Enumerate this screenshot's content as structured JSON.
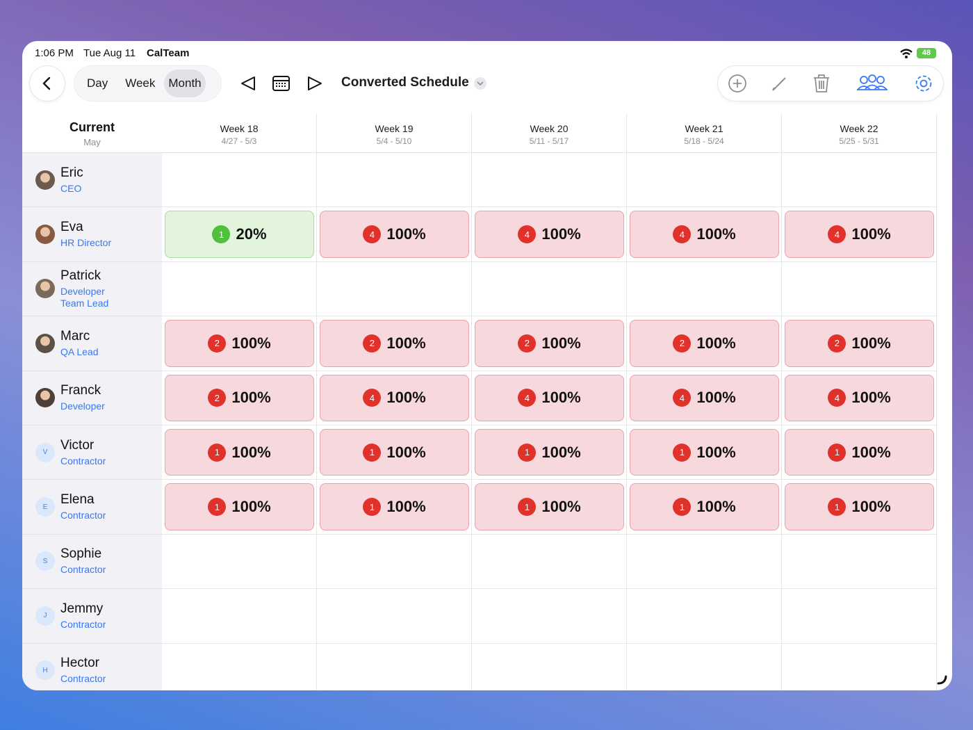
{
  "status_bar": {
    "time": "1:06 PM",
    "date": "Tue Aug 11",
    "app": "CalTeam",
    "battery": "48"
  },
  "toolbar": {
    "views": [
      "Day",
      "Week",
      "Month"
    ],
    "selected_view_index": 2,
    "title": "Converted Schedule"
  },
  "header": {
    "title": "Current",
    "subtitle": "May"
  },
  "weeks": [
    {
      "label": "Week 18",
      "range": "4/27 - 5/3"
    },
    {
      "label": "Week 19",
      "range": "5/4 - 5/10"
    },
    {
      "label": "Week 20",
      "range": "5/11 - 5/17"
    },
    {
      "label": "Week 21",
      "range": "5/18 - 5/24"
    },
    {
      "label": "Week 22",
      "range": "5/25 - 5/31"
    }
  ],
  "people": [
    {
      "name": "Eric",
      "roles": [
        "CEO"
      ],
      "cells": [
        null,
        null,
        null,
        null,
        null
      ]
    },
    {
      "name": "Eva",
      "roles": [
        "HR Director"
      ],
      "cells": [
        {
          "count": 1,
          "percent": "20%",
          "color": "green"
        },
        {
          "count": 4,
          "percent": "100%",
          "color": "red"
        },
        {
          "count": 4,
          "percent": "100%",
          "color": "red"
        },
        {
          "count": 4,
          "percent": "100%",
          "color": "red"
        },
        {
          "count": 4,
          "percent": "100%",
          "color": "red"
        }
      ]
    },
    {
      "name": "Patrick",
      "roles": [
        "Developer",
        "Team Lead"
      ],
      "cells": [
        null,
        null,
        null,
        null,
        null
      ]
    },
    {
      "name": "Marc",
      "roles": [
        "QA Lead"
      ],
      "cells": [
        {
          "count": 2,
          "percent": "100%",
          "color": "red"
        },
        {
          "count": 2,
          "percent": "100%",
          "color": "red"
        },
        {
          "count": 2,
          "percent": "100%",
          "color": "red"
        },
        {
          "count": 2,
          "percent": "100%",
          "color": "red"
        },
        {
          "count": 2,
          "percent": "100%",
          "color": "red"
        }
      ]
    },
    {
      "name": "Franck",
      "roles": [
        "Developer"
      ],
      "cells": [
        {
          "count": 2,
          "percent": "100%",
          "color": "red"
        },
        {
          "count": 4,
          "percent": "100%",
          "color": "red"
        },
        {
          "count": 4,
          "percent": "100%",
          "color": "red"
        },
        {
          "count": 4,
          "percent": "100%",
          "color": "red"
        },
        {
          "count": 4,
          "percent": "100%",
          "color": "red"
        }
      ]
    },
    {
      "name": "Victor",
      "roles": [
        "Contractor"
      ],
      "initial": "V",
      "cells": [
        {
          "count": 1,
          "percent": "100%",
          "color": "red"
        },
        {
          "count": 1,
          "percent": "100%",
          "color": "red"
        },
        {
          "count": 1,
          "percent": "100%",
          "color": "red"
        },
        {
          "count": 1,
          "percent": "100%",
          "color": "red"
        },
        {
          "count": 1,
          "percent": "100%",
          "color": "red"
        }
      ]
    },
    {
      "name": "Elena",
      "roles": [
        "Contractor"
      ],
      "initial": "E",
      "cells": [
        {
          "count": 1,
          "percent": "100%",
          "color": "red"
        },
        {
          "count": 1,
          "percent": "100%",
          "color": "red"
        },
        {
          "count": 1,
          "percent": "100%",
          "color": "red"
        },
        {
          "count": 1,
          "percent": "100%",
          "color": "red"
        },
        {
          "count": 1,
          "percent": "100%",
          "color": "red"
        }
      ]
    },
    {
      "name": "Sophie",
      "roles": [
        "Contractor"
      ],
      "initial": "S",
      "cells": [
        null,
        null,
        null,
        null,
        null
      ]
    },
    {
      "name": "Jemmy",
      "roles": [
        "Contractor"
      ],
      "initial": "J",
      "cells": [
        null,
        null,
        null,
        null,
        null
      ]
    },
    {
      "name": "Hector",
      "roles": [
        "Contractor"
      ],
      "initial": "H",
      "cells": [
        null,
        null,
        null,
        null,
        null
      ]
    }
  ]
}
